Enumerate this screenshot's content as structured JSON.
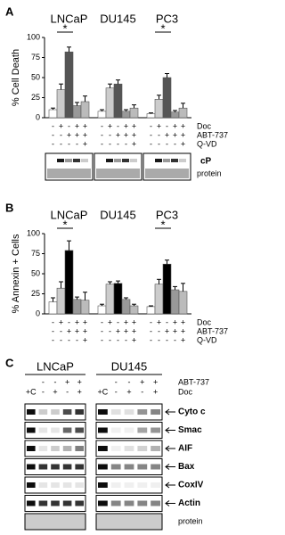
{
  "chart_data": [
    {
      "type": "bar",
      "panel": "A",
      "ylabel": "% Cell Death",
      "categories": [
        "LNCaP",
        "DU145",
        "PC3"
      ],
      "series": [
        {
          "color": "#ffffff",
          "values": [
            10,
            8,
            5
          ],
          "errors": [
            2,
            2,
            1
          ]
        },
        {
          "color": "#cccccc",
          "values": [
            35,
            37,
            23
          ],
          "errors": [
            7,
            5,
            5
          ]
        },
        {
          "color": "#555555",
          "values": [
            82,
            42,
            50
          ],
          "errors": [
            6,
            5,
            5
          ]
        },
        {
          "color": "#999999",
          "values": [
            15,
            8,
            7
          ],
          "errors": [
            4,
            2,
            2
          ]
        },
        {
          "color": "#bbbbbb",
          "values": [
            20,
            12,
            12
          ],
          "errors": [
            7,
            4,
            6
          ]
        }
      ],
      "ylim": [
        0,
        100
      ],
      "yticks": [
        0,
        25,
        50,
        75,
        100
      ],
      "significance": "*",
      "conditions": [
        {
          "label": "Doc",
          "signs": [
            "-",
            "+",
            "-",
            "+",
            "+"
          ]
        },
        {
          "label": "ABT-737",
          "signs": [
            "-",
            "-",
            "+",
            "+",
            "+"
          ]
        },
        {
          "label": "Q-VD",
          "signs": [
            "-",
            "-",
            "-",
            "-",
            "+"
          ]
        }
      ],
      "blot_labels": [
        "cP",
        "protein"
      ]
    },
    {
      "type": "bar",
      "panel": "B",
      "ylabel": "% Annexin + Cells",
      "categories": [
        "LNCaP",
        "DU145",
        "PC3"
      ],
      "series": [
        {
          "color": "#ffffff",
          "values": [
            15,
            10,
            9
          ],
          "errors": [
            5,
            2,
            1
          ]
        },
        {
          "color": "#cccccc",
          "values": [
            32,
            37,
            37
          ],
          "errors": [
            8,
            3,
            6
          ]
        },
        {
          "color": "#000000",
          "values": [
            79,
            38,
            62
          ],
          "errors": [
            12,
            3,
            5
          ]
        },
        {
          "color": "#999999",
          "values": [
            18,
            18,
            30
          ],
          "errors": [
            3,
            2,
            4
          ]
        },
        {
          "color": "#bbbbbb",
          "values": [
            17,
            10,
            28
          ],
          "errors": [
            10,
            2,
            10
          ]
        }
      ],
      "ylim": [
        0,
        100
      ],
      "yticks": [
        0,
        25,
        50,
        75,
        100
      ],
      "significance": "*",
      "conditions": [
        {
          "label": "Doc",
          "signs": [
            "-",
            "+",
            "-",
            "+",
            "+"
          ]
        },
        {
          "label": "ABT-737",
          "signs": [
            "-",
            "-",
            "+",
            "+",
            "+"
          ]
        },
        {
          "label": "Q-VD",
          "signs": [
            "-",
            "-",
            "-",
            "-",
            "+"
          ]
        }
      ]
    }
  ],
  "panel_c": {
    "panel": "C",
    "cell_lines": [
      "LNCaP",
      "DU145"
    ],
    "conditions": [
      {
        "label": "ABT-737",
        "signs": [
          "",
          "-",
          "-",
          "+",
          "+"
        ]
      },
      {
        "label": "Doc",
        "signs": [
          "+C",
          "-",
          "+",
          "-",
          "+"
        ]
      }
    ],
    "blot_labels": [
      "Cyto c",
      "Smac",
      "AIF",
      "Bax",
      "CoxIV",
      "Actin",
      "protein"
    ]
  }
}
